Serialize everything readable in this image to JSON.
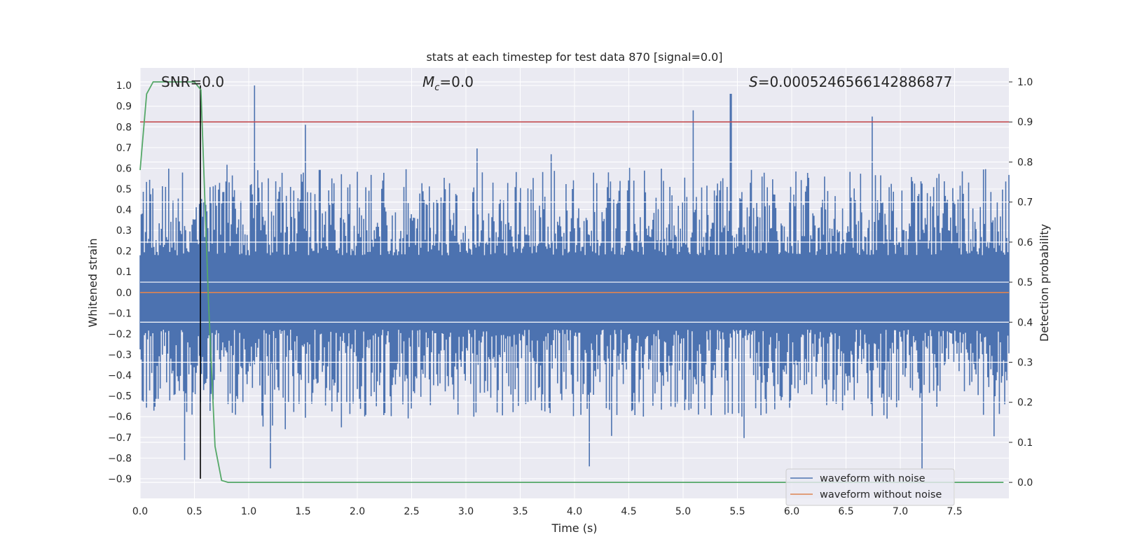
{
  "chart_data": {
    "type": "line",
    "title": "stats at each timestep for test data 870 [signal=0.0]",
    "xlabel": "Time (s)",
    "ylabel": "Whitened strain",
    "y2label": "Detection probability",
    "xlim": [
      0.0,
      8.0
    ],
    "ylim": [
      -0.995,
      1.085
    ],
    "y2lim": [
      -0.04,
      1.035
    ],
    "x_ticks": [
      0.0,
      0.5,
      1.0,
      1.5,
      2.0,
      2.5,
      3.0,
      3.5,
      4.0,
      4.5,
      5.0,
      5.5,
      6.0,
      6.5,
      7.0,
      7.5
    ],
    "x_tick_labels": [
      "0.0",
      "0.5",
      "1.0",
      "1.5",
      "2.0",
      "2.5",
      "3.0",
      "3.5",
      "4.0",
      "4.5",
      "5.0",
      "5.5",
      "6.0",
      "6.5",
      "7.0",
      "7.5"
    ],
    "y_ticks": [
      -0.9,
      -0.8,
      -0.7,
      -0.6,
      -0.5,
      -0.4,
      -0.3,
      -0.2,
      -0.1,
      0.0,
      0.1,
      0.2,
      0.3,
      0.4,
      0.5,
      0.6,
      0.7,
      0.8,
      0.9,
      1.0
    ],
    "y_tick_labels": [
      "−0.9",
      "−0.8",
      "−0.7",
      "−0.6",
      "−0.5",
      "−0.4",
      "−0.3",
      "−0.2",
      "−0.1",
      "0.0",
      "0.1",
      "0.2",
      "0.3",
      "0.4",
      "0.5",
      "0.6",
      "0.7",
      "0.8",
      "0.9",
      "1.0"
    ],
    "y2_ticks": [
      0.0,
      0.1,
      0.2,
      0.3,
      0.4,
      0.5,
      0.6,
      0.7,
      0.8,
      0.9,
      1.0
    ],
    "y2_tick_labels": [
      "0.0",
      "0.1",
      "0.2",
      "0.3",
      "0.4",
      "0.5",
      "0.6",
      "0.7",
      "0.8",
      "0.9",
      "1.0"
    ],
    "grid": true,
    "annotations": {
      "snr": "SNR=0.0",
      "mc_symbol": "M",
      "mc_sub": "c",
      "mc_value": "=0.0",
      "s_symbol": "S",
      "s_value": "=0.0005246566142886877"
    },
    "series": [
      {
        "name": "waveform with noise",
        "color": "#4c72b0",
        "axis": "left",
        "description": "whitened noise, roughly within -0.5..0.5 with spikes",
        "peaks": [
          {
            "x": 1.05,
            "y": 1.0
          },
          {
            "x": 5.44,
            "y": 0.96
          },
          {
            "x": 5.09,
            "y": 0.88
          },
          {
            "x": 6.74,
            "y": 0.85
          },
          {
            "x": 1.52,
            "y": 0.81
          },
          {
            "x": 7.2,
            "y": -0.85
          },
          {
            "x": 4.14,
            "y": -0.84
          },
          {
            "x": 1.2,
            "y": -0.85
          },
          {
            "x": 0.41,
            "y": -0.81
          }
        ]
      },
      {
        "name": "waveform without noise",
        "color": "#dd8452",
        "axis": "left",
        "x": [
          0.0,
          8.0
        ],
        "y": [
          0.0,
          0.0
        ]
      },
      {
        "name": "detection probability",
        "color": "#55a868",
        "axis": "right",
        "x": [
          0.0,
          0.06,
          0.12,
          0.25,
          0.38,
          0.5,
          0.56,
          0.63,
          0.69,
          0.75,
          0.81,
          1.0,
          2.0,
          3.0,
          4.0,
          5.0,
          6.0,
          7.0,
          7.95
        ],
        "y": [
          0.78,
          0.97,
          1.0,
          1.0,
          1.0,
          1.0,
          0.98,
          0.45,
          0.09,
          0.005,
          0.0,
          0.0,
          0.0,
          0.0,
          0.0,
          0.0,
          0.0,
          0.0,
          0.0
        ]
      },
      {
        "name": "threshold",
        "color": "#c44e52",
        "axis": "right",
        "x": [
          0.0,
          8.0
        ],
        "y": [
          0.9,
          0.9
        ]
      },
      {
        "name": "event marker",
        "color": "#000000",
        "axis": "left",
        "x": [
          0.555,
          0.555
        ],
        "y": [
          -0.9,
          1.0
        ]
      }
    ],
    "legend": {
      "position": "lower-right",
      "entries": [
        {
          "label": "waveform with noise",
          "color": "#4c72b0"
        },
        {
          "label": "waveform without noise",
          "color": "#dd8452"
        }
      ]
    }
  }
}
